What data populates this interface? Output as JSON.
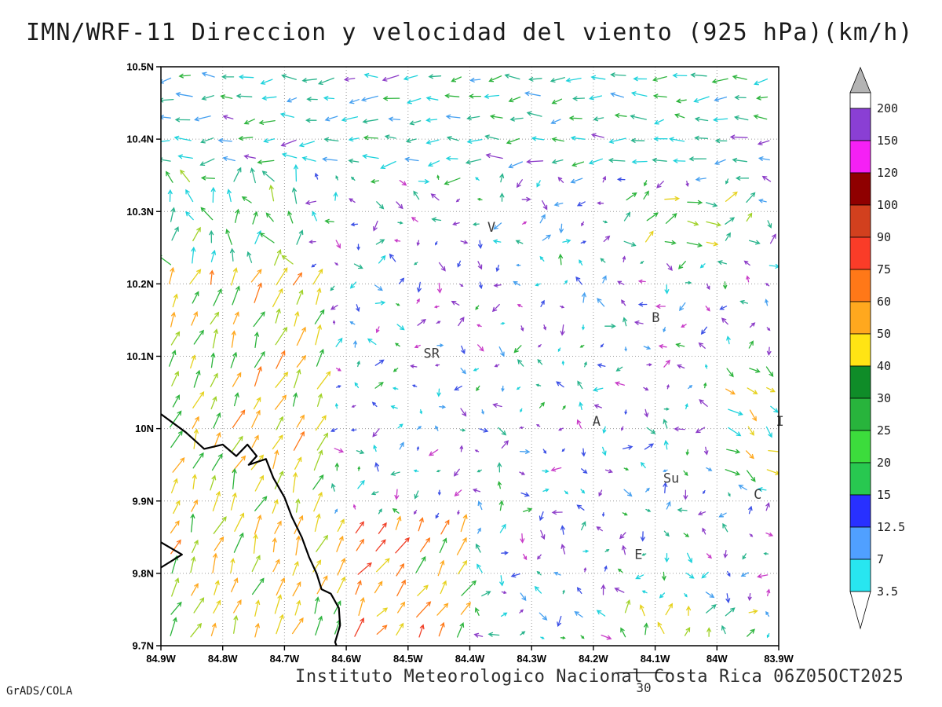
{
  "title": "IMN/WRF-11 Direccion y velocidad del viento (925 hPa)(km/h)",
  "footer": {
    "institute_datetime": "Instituto Meteorologico Nacional Costa Rica 06Z05OCT2025",
    "credit": "GrADS/COLA"
  },
  "chart_data": {
    "type": "vector_field_map",
    "title": "IMN/WRF-11 Direccion y velocidad del viento (925 hPa)(km/h)",
    "model": "IMN/WRF-11",
    "variable": "Direccion y velocidad del viento",
    "pressure_level": "925 hPa",
    "units": "km/h",
    "valid_time": "06Z05OCT2025",
    "map": {
      "lon_min": -84.9,
      "lon_max": -83.9,
      "lat_min": 9.7,
      "lat_max": 10.5
    },
    "grid": {
      "step_deg": 0.1,
      "style": "dotted"
    },
    "lat_ticks": [
      {
        "value": 10.5,
        "label": "10.5N"
      },
      {
        "value": 10.4,
        "label": "10.4N"
      },
      {
        "value": 10.3,
        "label": "10.3N"
      },
      {
        "value": 10.2,
        "label": "10.2N"
      },
      {
        "value": 10.1,
        "label": "10.1N"
      },
      {
        "value": 10.0,
        "label": "10N"
      },
      {
        "value": 9.9,
        "label": "9.9N"
      },
      {
        "value": 9.8,
        "label": "9.8N"
      },
      {
        "value": 9.7,
        "label": "9.7N"
      }
    ],
    "lon_ticks": [
      {
        "value": -84.9,
        "label": "84.9W"
      },
      {
        "value": -84.8,
        "label": "84.8W"
      },
      {
        "value": -84.7,
        "label": "84.7W"
      },
      {
        "value": -84.6,
        "label": "84.6W"
      },
      {
        "value": -84.5,
        "label": "84.5W"
      },
      {
        "value": -84.4,
        "label": "84.4W"
      },
      {
        "value": -84.3,
        "label": "84.3W"
      },
      {
        "value": -84.2,
        "label": "84.2W"
      },
      {
        "value": -84.1,
        "label": "84.1W"
      },
      {
        "value": -84.0,
        "label": "84W"
      },
      {
        "value": -83.9,
        "label": "83.9W"
      }
    ],
    "colorbar": {
      "units": "km/h",
      "boundary_labels": [
        "200",
        "150",
        "120",
        "100",
        "90",
        "75",
        "60",
        "50",
        "40",
        "30",
        "25",
        "20",
        "15",
        "12.5",
        "7",
        "3.5"
      ],
      "band_colors_top_to_bottom": [
        "#ffffff",
        "#8a3fd4",
        "#f520f5",
        "#8f0000",
        "#d2401e",
        "#fa3c28",
        "#ff7818",
        "#ffa81e",
        "#ffe414",
        "#0f8c28",
        "#28b43c",
        "#3cdc3c",
        "#28c850",
        "#2830ff",
        "#50a0ff",
        "#28e6f0"
      ],
      "top_triangle_color": "#b4b4b4",
      "bottom_triangle_color": "#ffffff"
    },
    "stations": [
      {
        "label": "V",
        "lon": -84.365,
        "lat": 10.272
      },
      {
        "label": "B",
        "lon": -84.099,
        "lat": 10.147
      },
      {
        "label": "SR",
        "lon": -84.462,
        "lat": 10.098
      },
      {
        "label": "A",
        "lon": -84.195,
        "lat": 10.004
      },
      {
        "label": "Su",
        "lon": -84.074,
        "lat": 9.925
      },
      {
        "label": "C",
        "lon": -83.934,
        "lat": 9.903
      },
      {
        "label": "E",
        "lon": -84.127,
        "lat": 9.82
      },
      {
        "label": "I",
        "lon": -83.898,
        "lat": 10.004
      }
    ],
    "coastline": [
      [
        [
          -84.9,
          10.02
        ],
        [
          -84.86,
          9.995
        ],
        [
          -84.83,
          9.972
        ],
        [
          -84.8,
          9.978
        ],
        [
          -84.778,
          9.962
        ],
        [
          -84.76,
          9.978
        ],
        [
          -84.745,
          9.962
        ],
        [
          -84.758,
          9.95
        ],
        [
          -84.73,
          9.958
        ],
        [
          -84.718,
          9.932
        ],
        [
          -84.7,
          9.905
        ],
        [
          -84.688,
          9.878
        ],
        [
          -84.672,
          9.85
        ],
        [
          -84.66,
          9.822
        ],
        [
          -84.648,
          9.8
        ],
        [
          -84.64,
          9.778
        ],
        [
          -84.625,
          9.772
        ],
        [
          -84.612,
          9.752
        ],
        [
          -84.61,
          9.728
        ],
        [
          -84.618,
          9.705
        ],
        [
          -84.615,
          9.698
        ]
      ],
      [
        [
          -84.9,
          9.843
        ],
        [
          -84.866,
          9.826
        ],
        [
          -84.9,
          9.808
        ]
      ]
    ],
    "reference_vector": {
      "value": 30,
      "label": "30"
    },
    "vector_field": {
      "seed": 20251005,
      "nx": 30,
      "ny": 28,
      "jitter": 3,
      "regions": [
        {
          "name": "top-easterly",
          "lon": [
            -84.9,
            -83.9
          ],
          "lat": [
            10.345,
            10.501
          ],
          "dir": [
            160,
            205
          ],
          "len": [
            12,
            21
          ],
          "colors": [
            "#1ed2dc",
            "#28b48c",
            "#2cb43c",
            "#46a0f0",
            "#8c3cc8"
          ],
          "weights": [
            0.34,
            0.26,
            0.16,
            0.16,
            0.08
          ]
        },
        {
          "name": "upper-left",
          "lon": [
            -84.9,
            -84.66
          ],
          "lat": [
            10.22,
            10.345
          ],
          "dir": [
            60,
            150
          ],
          "len": [
            13,
            21
          ],
          "colors": [
            "#28b48c",
            "#2cb43c",
            "#1ed2dc",
            "#a0d228"
          ],
          "weights": [
            0.3,
            0.3,
            0.25,
            0.15
          ]
        },
        {
          "name": "pacific-coast",
          "lon": [
            -84.9,
            -84.63
          ],
          "lat": [
            9.699,
            10.22
          ],
          "dir": [
            50,
            85
          ],
          "len": [
            16,
            27
          ],
          "colors": [
            "#e6d21e",
            "#ffa81e",
            "#2cb43c",
            "#a0d228",
            "#ff7818"
          ],
          "weights": [
            0.28,
            0.2,
            0.26,
            0.16,
            0.1
          ]
        },
        {
          "name": "coast-bottom",
          "lon": [
            -84.63,
            -84.4
          ],
          "lat": [
            9.699,
            9.87
          ],
          "dir": [
            38,
            75
          ],
          "len": [
            15,
            26
          ],
          "colors": [
            "#ff7818",
            "#f04028",
            "#ffa81e",
            "#e6d21e",
            "#2cb43c"
          ],
          "weights": [
            0.3,
            0.14,
            0.26,
            0.15,
            0.15
          ]
        },
        {
          "name": "ne-lime",
          "lon": [
            -84.16,
            -83.94
          ],
          "lat": [
            10.24,
            10.34
          ],
          "dir": [
            -20,
            60
          ],
          "len": [
            11,
            19
          ],
          "colors": [
            "#a0d228",
            "#2cb43c",
            "#e6d21e",
            "#28b48c"
          ],
          "weights": [
            0.3,
            0.25,
            0.2,
            0.25
          ]
        },
        {
          "name": "east-amber",
          "lon": [
            -84.01,
            -83.9
          ],
          "lat": [
            9.92,
            10.09
          ],
          "dir": [
            -65,
            -5
          ],
          "len": [
            11,
            20
          ],
          "colors": [
            "#e6d21e",
            "#ffa81e",
            "#2cb43c",
            "#1ed2dc"
          ],
          "weights": [
            0.3,
            0.25,
            0.25,
            0.2
          ]
        },
        {
          "name": "bottom-right-mixed",
          "lon": [
            -84.16,
            -83.94
          ],
          "lat": [
            9.699,
            9.77
          ],
          "dir": [
            10,
            120
          ],
          "len": [
            10,
            17
          ],
          "colors": [
            "#a0d228",
            "#e6d21e",
            "#28b48c",
            "#2cb43c"
          ],
          "weights": [
            0.3,
            0.25,
            0.25,
            0.2
          ]
        }
      ],
      "default_region": {
        "name": "interior",
        "dirMode": "smooth",
        "dirSpread": 150,
        "len": [
          4,
          13
        ],
        "colors": [
          "#1ed2dc",
          "#28b48c",
          "#3c50e6",
          "#46a0f0",
          "#8c3cc8",
          "#c83cc8",
          "#2cb43c"
        ],
        "weights": [
          0.2,
          0.13,
          0.15,
          0.12,
          0.24,
          0.08,
          0.08
        ]
      }
    }
  }
}
